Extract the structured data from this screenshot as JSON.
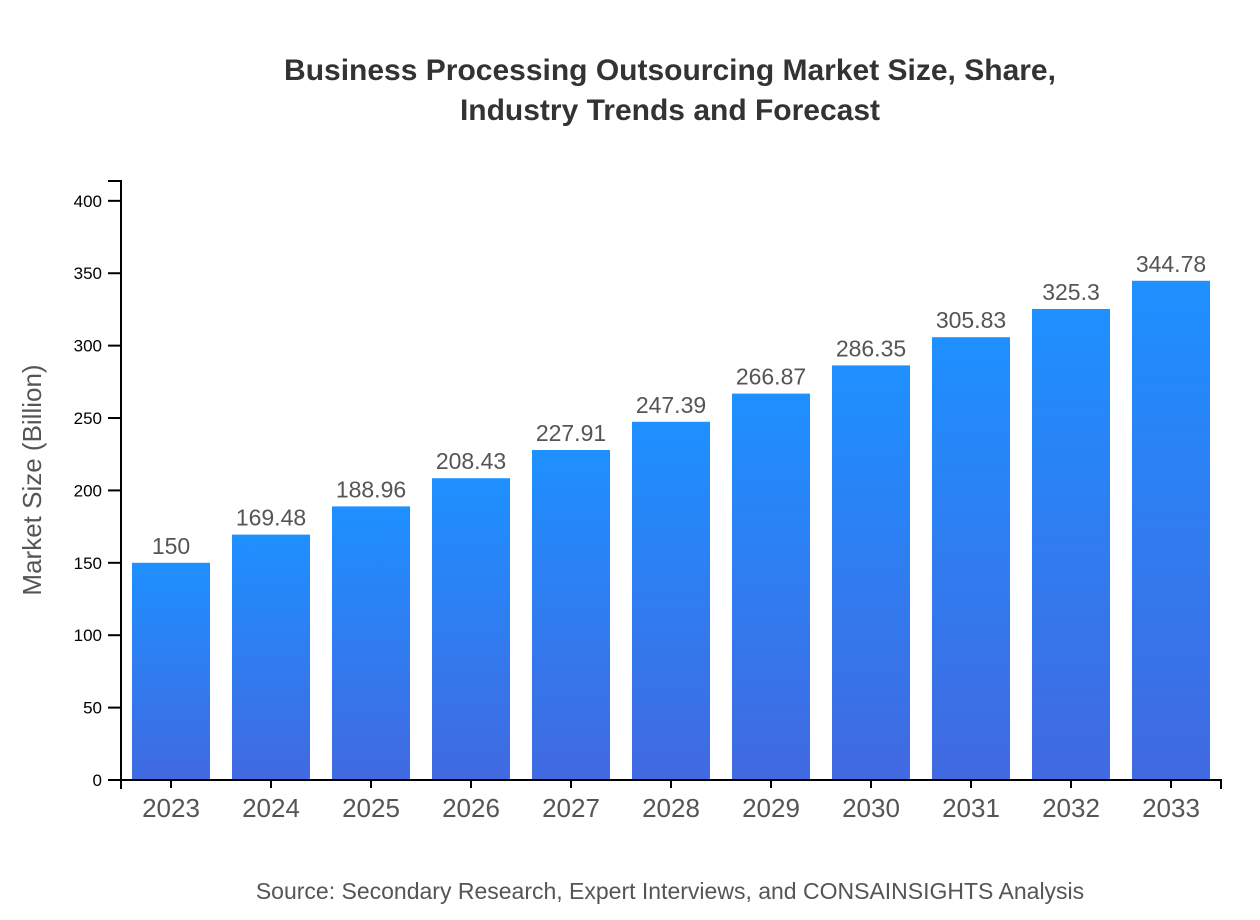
{
  "chart_data": {
    "type": "bar",
    "title": [
      "Business Processing Outsourcing Market Size, Share,",
      "Industry Trends and Forecast"
    ],
    "xlabel": "",
    "ylabel": "Market Size (Billion)",
    "categories": [
      "2023",
      "2024",
      "2025",
      "2026",
      "2027",
      "2028",
      "2029",
      "2030",
      "2031",
      "2032",
      "2033"
    ],
    "values": [
      150,
      169.48,
      188.96,
      208.43,
      227.91,
      247.39,
      266.87,
      286.35,
      305.83,
      325.3,
      344.78
    ],
    "ylim": [
      0,
      413.7
    ],
    "yticks": [
      0,
      50,
      100,
      150,
      200,
      250,
      300,
      350,
      400
    ],
    "grid": false,
    "colors": {
      "bar_top": "#1E90FF",
      "bar_bottom": "#4169E1"
    },
    "source": "Source: Secondary Research, Expert Interviews, and CONSAINSIGHTS Analysis"
  }
}
